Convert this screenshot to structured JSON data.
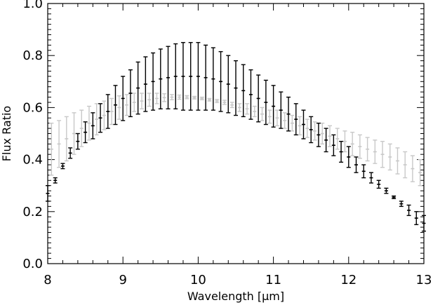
{
  "chart_data": {
    "type": "scatter",
    "title": "",
    "xlabel": "Wavelength [μm]",
    "ylabel": "Flux Ratio",
    "xlim": [
      8,
      13
    ],
    "ylim": [
      0,
      1
    ],
    "x_ticks": [
      "8",
      "9",
      "10",
      "11",
      "12",
      "13"
    ],
    "y_ticks": [
      "0.0",
      "0.2",
      "0.4",
      "0.6",
      "0.8",
      "1.0"
    ],
    "grid": false,
    "legend": "none",
    "series": [
      {
        "color": "#000000",
        "style": "errorbar",
        "x": [
          8.0,
          8.1,
          8.2,
          8.3,
          8.4,
          8.5,
          8.6,
          8.7,
          8.8,
          8.9,
          9.0,
          9.1,
          9.2,
          9.3,
          9.4,
          9.5,
          9.6,
          9.7,
          9.8,
          9.9,
          10.0,
          10.1,
          10.2,
          10.3,
          10.4,
          10.5,
          10.6,
          10.7,
          10.8,
          10.9,
          11.0,
          11.1,
          11.2,
          11.3,
          11.4,
          11.5,
          11.6,
          11.7,
          11.8,
          11.9,
          12.0,
          12.1,
          12.2,
          12.3,
          12.4,
          12.5,
          12.6,
          12.7,
          12.8,
          12.9,
          13.0
        ],
        "y": [
          0.27,
          0.32,
          0.375,
          0.425,
          0.47,
          0.505,
          0.53,
          0.56,
          0.585,
          0.61,
          0.635,
          0.655,
          0.675,
          0.69,
          0.7,
          0.71,
          0.715,
          0.72,
          0.72,
          0.72,
          0.72,
          0.715,
          0.71,
          0.7,
          0.69,
          0.675,
          0.665,
          0.65,
          0.635,
          0.62,
          0.605,
          0.59,
          0.575,
          0.555,
          0.535,
          0.515,
          0.495,
          0.475,
          0.455,
          0.43,
          0.41,
          0.38,
          0.355,
          0.33,
          0.305,
          0.28,
          0.255,
          0.23,
          0.205,
          0.175,
          0.155
        ],
        "err": [
          0.03,
          0.01,
          0.01,
          0.02,
          0.03,
          0.04,
          0.05,
          0.055,
          0.065,
          0.075,
          0.085,
          0.09,
          0.1,
          0.105,
          0.11,
          0.115,
          0.12,
          0.125,
          0.13,
          0.13,
          0.13,
          0.125,
          0.12,
          0.115,
          0.11,
          0.105,
          0.1,
          0.095,
          0.09,
          0.085,
          0.08,
          0.07,
          0.065,
          0.06,
          0.055,
          0.05,
          0.045,
          0.045,
          0.04,
          0.04,
          0.04,
          0.03,
          0.025,
          0.02,
          0.015,
          0.01,
          0.005,
          0.01,
          0.02,
          0.025,
          0.03
        ]
      },
      {
        "color": "#c8c8c8",
        "style": "errorbar",
        "x": [
          8.05,
          8.15,
          8.25,
          8.35,
          8.45,
          8.55,
          8.65,
          8.75,
          8.85,
          8.95,
          9.05,
          9.15,
          9.25,
          9.35,
          9.45,
          9.55,
          9.65,
          9.75,
          9.85,
          9.95,
          10.05,
          10.15,
          10.25,
          10.35,
          10.45,
          10.55,
          10.65,
          10.75,
          10.85,
          10.95,
          11.05,
          11.15,
          11.25,
          11.35,
          11.45,
          11.55,
          11.65,
          11.75,
          11.85,
          11.95,
          12.05,
          12.15,
          12.25,
          12.35,
          12.45,
          12.55,
          12.65,
          12.75,
          12.85,
          12.95
        ],
        "y": [
          0.44,
          0.46,
          0.48,
          0.5,
          0.52,
          0.54,
          0.555,
          0.57,
          0.585,
          0.6,
          0.61,
          0.62,
          0.625,
          0.63,
          0.635,
          0.638,
          0.64,
          0.64,
          0.64,
          0.638,
          0.635,
          0.63,
          0.625,
          0.62,
          0.61,
          0.6,
          0.595,
          0.585,
          0.575,
          0.565,
          0.56,
          0.55,
          0.54,
          0.53,
          0.52,
          0.51,
          0.5,
          0.49,
          0.48,
          0.47,
          0.46,
          0.45,
          0.44,
          0.43,
          0.42,
          0.41,
          0.395,
          0.38,
          0.365,
          0.35
        ],
        "err": [
          0.1,
          0.09,
          0.085,
          0.08,
          0.07,
          0.065,
          0.06,
          0.055,
          0.05,
          0.045,
          0.04,
          0.035,
          0.03,
          0.025,
          0.02,
          0.015,
          0.01,
          0.008,
          0.006,
          0.005,
          0.005,
          0.005,
          0.006,
          0.008,
          0.01,
          0.015,
          0.02,
          0.02,
          0.025,
          0.025,
          0.03,
          0.03,
          0.03,
          0.035,
          0.035,
          0.035,
          0.04,
          0.04,
          0.04,
          0.04,
          0.045,
          0.045,
          0.045,
          0.045,
          0.05,
          0.05,
          0.05,
          0.05,
          0.05,
          0.05
        ]
      }
    ]
  }
}
